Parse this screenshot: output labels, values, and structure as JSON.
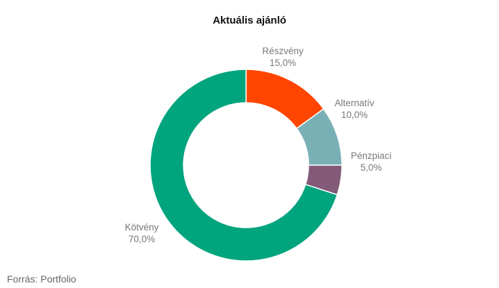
{
  "chart_data": {
    "type": "pie",
    "variant": "donut",
    "title": "Aktuális ajánló",
    "slices": [
      {
        "name": "Részvény",
        "value": 15.0,
        "label": "15,0%",
        "color": "#ff4500"
      },
      {
        "name": "Alternatív",
        "value": 10.0,
        "label": "10,0%",
        "color": "#79b0b5"
      },
      {
        "name": "Pénzpiaci",
        "value": 5.0,
        "label": "5,0%",
        "color": "#835a78"
      },
      {
        "name": "Kötvény",
        "value": 70.0,
        "label": "70,0%",
        "color": "#00a47d"
      }
    ]
  },
  "source": "Forrás: Portfolio"
}
